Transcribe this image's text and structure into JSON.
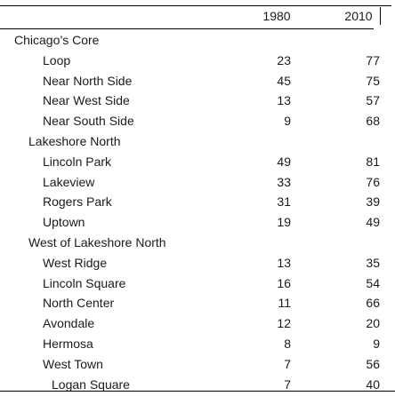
{
  "columns": [
    "1980",
    "2010"
  ],
  "rows": [
    {
      "label": "Chicago’s Core",
      "level": 0
    },
    {
      "label": "Loop",
      "level": 2,
      "v1980": "23",
      "v2010": "77"
    },
    {
      "label": "Near North Side",
      "level": 2,
      "v1980": "45",
      "v2010": "75"
    },
    {
      "label": "Near West Side",
      "level": 2,
      "v1980": "13",
      "v2010": "57"
    },
    {
      "label": "Near South Side",
      "level": 2,
      "v1980": "9",
      "v2010": "68"
    },
    {
      "label": "Lakeshore North",
      "level": 1
    },
    {
      "label": "Lincoln Park",
      "level": 2,
      "v1980": "49",
      "v2010": "81"
    },
    {
      "label": "Lakeview",
      "level": 2,
      "v1980": "33",
      "v2010": "76"
    },
    {
      "label": "Rogers Park",
      "level": 2,
      "v1980": "31",
      "v2010": "39"
    },
    {
      "label": "Uptown",
      "level": 2,
      "v1980": "19",
      "v2010": "49"
    },
    {
      "label": "West of Lakeshore North",
      "level": 1
    },
    {
      "label": "West Ridge",
      "level": 2,
      "v1980": "13",
      "v2010": "35"
    },
    {
      "label": "Lincoln Square",
      "level": 2,
      "v1980": "16",
      "v2010": "54"
    },
    {
      "label": "North Center",
      "level": 2,
      "v1980": "11",
      "v2010": "66"
    },
    {
      "label": "Avondale",
      "level": 2,
      "v1980": "12",
      "v2010": "20"
    },
    {
      "label": "Hermosa",
      "level": 2,
      "v1980": "8",
      "v2010": "9"
    },
    {
      "label": "West Town",
      "level": 2,
      "v1980": "7",
      "v2010": "56"
    },
    {
      "label": "Logan Square",
      "level": 3,
      "v1980": "7",
      "v2010": "40"
    }
  ]
}
